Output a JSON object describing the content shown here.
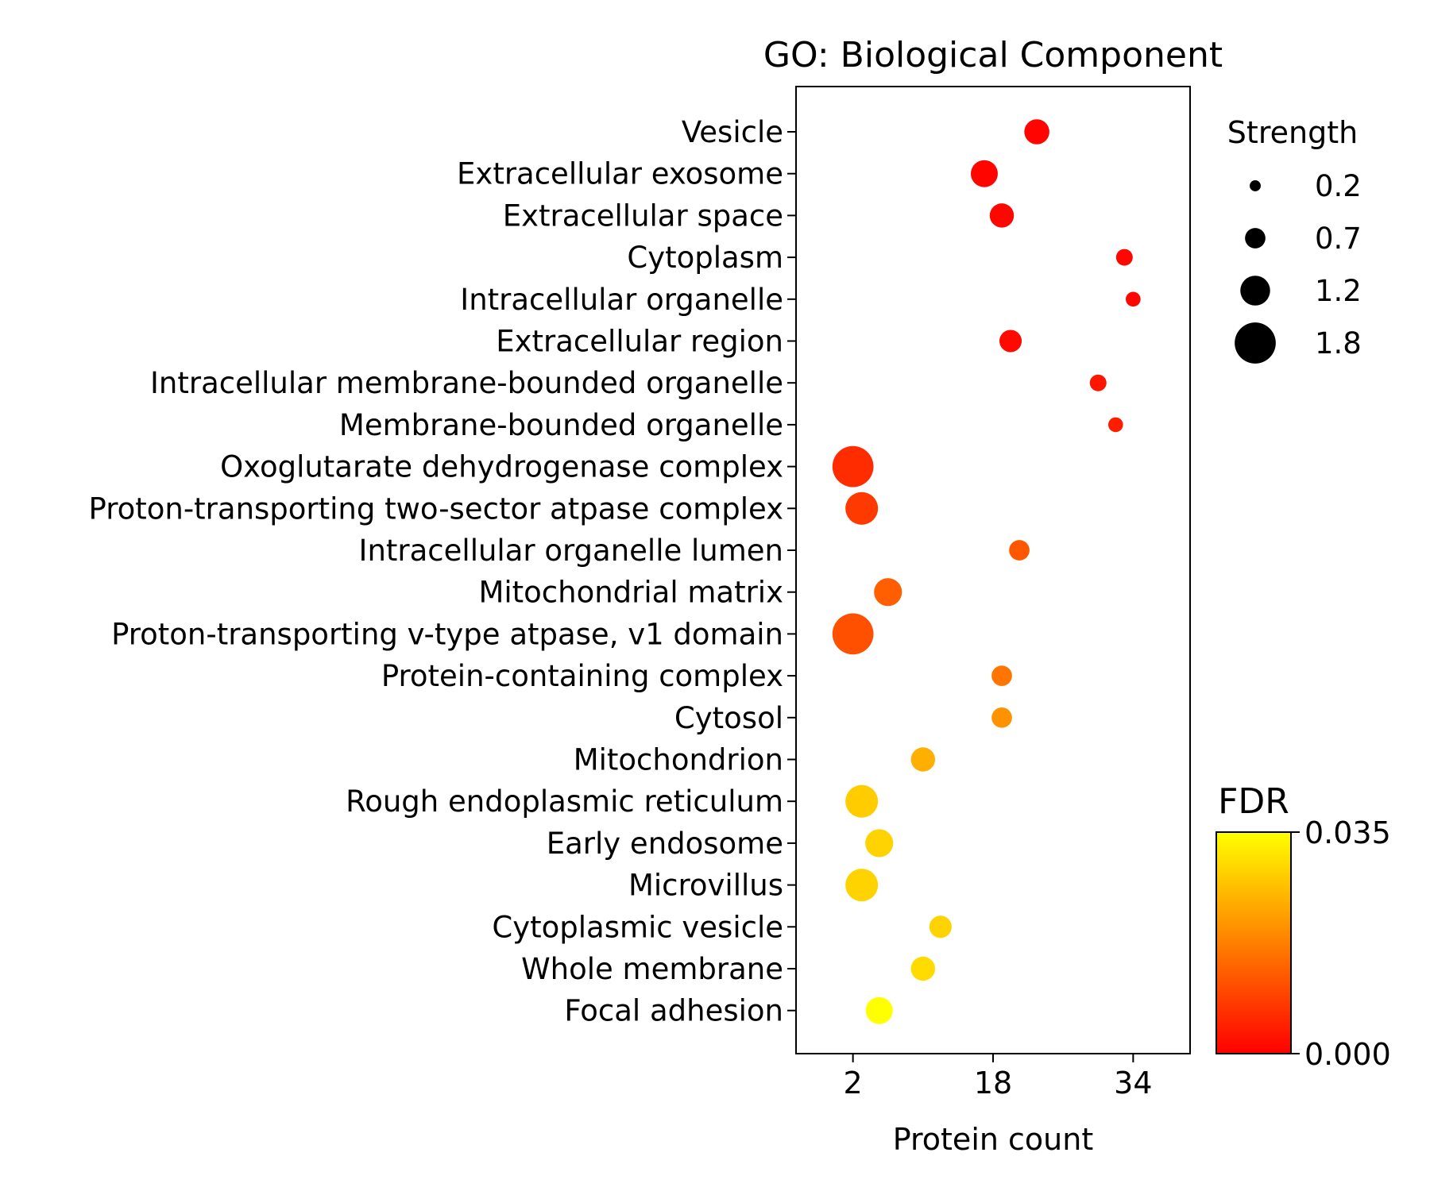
{
  "chart_data": {
    "type": "scatter",
    "title": "GO: Biological Component",
    "xlabel": "Protein count",
    "ylabel": "",
    "xlim": [
      -4.5,
      40.5
    ],
    "xticks": [
      "2",
      "18",
      "34"
    ],
    "xtick_values": [
      2,
      18,
      34
    ],
    "categories": [
      "Vesicle",
      "Extracellular exosome",
      "Extracellular space",
      "Cytoplasm",
      "Intracellular organelle",
      "Extracellular region",
      "Intracellular membrane-bounded organelle",
      "Membrane-bounded organelle",
      "Oxoglutarate dehydrogenase complex",
      "Proton-transporting two-sector atpase complex",
      "Intracellular organelle lumen",
      "Mitochondrial matrix",
      "Proton-transporting v-type atpase, v1 domain",
      "Protein-containing complex",
      "Cytosol",
      "Mitochondrion",
      "Rough endoplasmic reticulum",
      "Early endosome",
      "Microvillus",
      "Cytoplasmic vesicle",
      "Whole membrane",
      "Focal adhesion"
    ],
    "protein_count": [
      23,
      17,
      19,
      33,
      34,
      20,
      30,
      32,
      2,
      3,
      21,
      6,
      2,
      19,
      19,
      10,
      3,
      5,
      3,
      12,
      10,
      5
    ],
    "strength": [
      0.95,
      1.05,
      0.9,
      0.5,
      0.4,
      0.8,
      0.5,
      0.4,
      1.8,
      1.35,
      0.7,
      1.1,
      1.8,
      0.7,
      0.7,
      0.9,
      1.35,
      1.1,
      1.35,
      0.8,
      0.9,
      1.05
    ],
    "fdr": [
      0.0005,
      0.0007,
      0.001,
      0.0009,
      0.0008,
      0.0012,
      0.003,
      0.004,
      0.006,
      0.008,
      0.012,
      0.013,
      0.011,
      0.016,
      0.02,
      0.024,
      0.028,
      0.029,
      0.029,
      0.029,
      0.03,
      0.035
    ],
    "size_legend": {
      "title": "Strength",
      "values": [
        "0.2",
        "0.7",
        "1.2",
        "1.8"
      ],
      "placement": "upper-right outside"
    },
    "colorbar": {
      "title": "FDR",
      "range": [
        0.0,
        0.035
      ],
      "tick_labels": [
        "0.000",
        "0.035"
      ],
      "colors": [
        "#ff0000",
        "#ffff00"
      ]
    }
  }
}
